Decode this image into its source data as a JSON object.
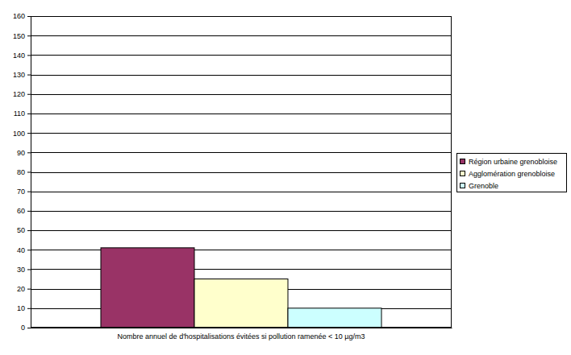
{
  "chart_data": {
    "type": "bar",
    "categories": [
      "Nombre annuel de d'hospitalisations évitées si pollution ramenée < 10 µg/m3"
    ],
    "series": [
      {
        "name": "Région urbaine grenobloise",
        "color": "#993366",
        "values": [
          41
        ]
      },
      {
        "name": "Agglomération grenobloise",
        "color": "#ffffcc",
        "values": [
          25
        ]
      },
      {
        "name": "Grenoble",
        "color": "#ccffff",
        "values": [
          10
        ]
      }
    ],
    "ylim": [
      0,
      160
    ],
    "yticks": [
      0,
      10,
      20,
      30,
      40,
      50,
      60,
      70,
      80,
      90,
      100,
      110,
      120,
      130,
      140,
      150,
      160
    ],
    "grid": true,
    "legend": "right"
  }
}
